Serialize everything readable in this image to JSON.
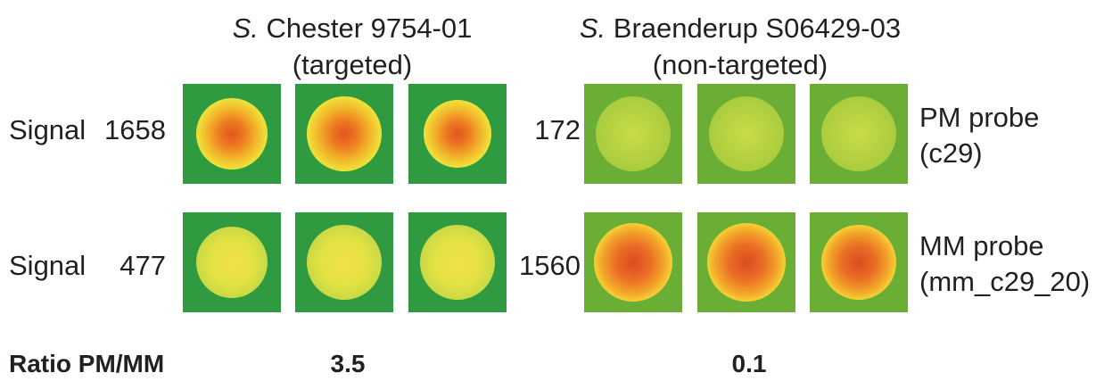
{
  "colors": {
    "dark_green": "#2f9a3f",
    "light_green": "#6aae35",
    "yellow": "#e8e43a",
    "orange": "#f0a21d",
    "red": "#e2541f"
  },
  "strains": [
    {
      "genus": "S.",
      "name": "Chester 9754-01",
      "status": "(targeted)",
      "ratio": "3.5"
    },
    {
      "genus": "S.",
      "name": "Braenderup S06429-03",
      "status": "(non-targeted)",
      "ratio": "0.1"
    }
  ],
  "rows": [
    {
      "signal_label": "Signal",
      "probe_line1": "PM probe",
      "probe_line2": "(c29)",
      "values": [
        "1658",
        "172"
      ]
    },
    {
      "signal_label": "Signal",
      "probe_line1": "MM probe",
      "probe_line2": "(mm_c29_20)",
      "values": [
        "477",
        "1560"
      ]
    }
  ],
  "ratio_label": "Ratio PM/MM",
  "spots": [
    [
      "strong-hybridization",
      "strong-hybridization",
      "strong-hybridization",
      "weak-hybridization",
      "weak-hybridization",
      "weak-hybridization"
    ],
    [
      "weak-hybridization",
      "weak-hybridization",
      "weak-hybridization",
      "strong-hybridization",
      "strong-hybridization",
      "strong-hybridization"
    ]
  ]
}
